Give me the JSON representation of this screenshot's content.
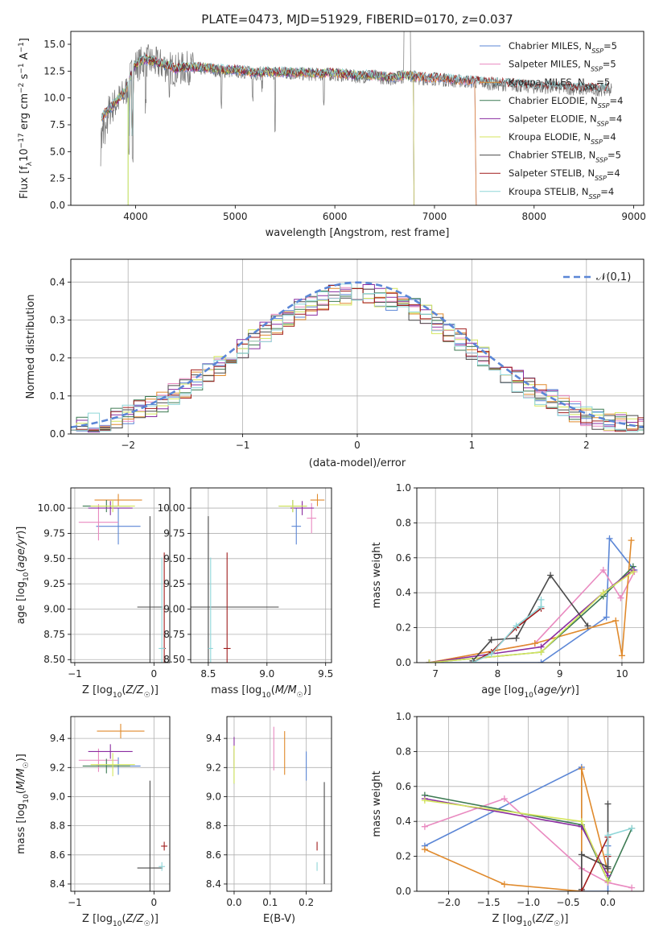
{
  "title": "PLATE=0473, MJD=51929, FIBERID=0170, z=0.037",
  "colors": {
    "Chabrier MILES": "#5b86d6",
    "Salpeter MILES": "#e98ac0",
    "Kroupa MILES": "#e08a2c",
    "Chabrier ELODIE": "#3c7a52",
    "Salpeter ELODIE": "#8a2ca0",
    "Kroupa ELODIE": "#d4e65c",
    "Chabrier STELIB": "#4a4a4a",
    "Salpeter STELIB": "#a01c1c",
    "Kroupa STELIB": "#8fd6d8"
  },
  "chart_data": [
    {
      "id": "spectrum",
      "type": "line",
      "xlabel": "wavelength [Angstrom, rest frame]",
      "ylabel": "Flux [f_λ 10^-17 erg cm^-2 s^-1 A^-1]",
      "xlim": [
        3350,
        9100
      ],
      "ylim": [
        0,
        16.2
      ],
      "xticks": [
        "4000",
        "5000",
        "6000",
        "7000",
        "8000",
        "9000"
      ],
      "yticks": [
        "0.0",
        "2.5",
        "5.0",
        "7.5",
        "10.0",
        "12.5",
        "15.0"
      ],
      "grid": false,
      "legend_position": "top-right",
      "legend": [
        {
          "name": "Chabrier MILES, N_SSP=5",
          "base": "Chabrier MILES, N",
          "sub": "SSP",
          "tail": "=5"
        },
        {
          "name": "Salpeter MILES, N_SSP=5",
          "base": "Salpeter MILES, N",
          "sub": "SSP",
          "tail": "=5"
        },
        {
          "name": "Kroupa MILES, N_SSP=5",
          "base": "Kroupa MILES, N",
          "sub": "SSP",
          "tail": "=5"
        },
        {
          "name": "Chabrier ELODIE, N_SSP=4",
          "base": "Chabrier ELODIE, N",
          "sub": "SSP",
          "tail": "=4"
        },
        {
          "name": "Salpeter ELODIE, N_SSP=4",
          "base": "Salpeter ELODIE, N",
          "sub": "SSP",
          "tail": "=4"
        },
        {
          "name": "Kroupa ELODIE, N_SSP=4",
          "base": "Kroupa ELODIE, N",
          "sub": "SSP",
          "tail": "=4"
        },
        {
          "name": "Chabrier STELIB, N_SSP=5",
          "base": "Chabrier STELIB, N",
          "sub": "SSP",
          "tail": "=5"
        },
        {
          "name": "Salpeter STELIB, N_SSP=4",
          "base": "Salpeter STELIB, N",
          "sub": "SSP",
          "tail": "=4"
        },
        {
          "name": "Kroupa STELIB, N_SSP=4",
          "base": "Kroupa STELIB, N",
          "sub": "SSP",
          "tail": "=4"
        }
      ],
      "data_envelope": {
        "x": [
          3650,
          3700,
          3800,
          3900,
          3950,
          4000,
          4100,
          4200,
          4300,
          4400,
          4500,
          4700,
          4900,
          5000,
          5200,
          5500,
          5800,
          6000,
          6200,
          6400,
          6563,
          6700,
          6900,
          7000,
          7200,
          7400,
          7600,
          7800,
          8000,
          8200,
          8500,
          8800
        ],
        "y": [
          8.0,
          8.5,
          9.5,
          10.5,
          12.0,
          13.0,
          13.5,
          13.2,
          13.0,
          12.6,
          12.8,
          12.7,
          12.5,
          12.5,
          12.3,
          12.3,
          12.2,
          12.2,
          12.0,
          12.0,
          11.8,
          12.0,
          11.8,
          11.8,
          11.6,
          11.5,
          11.3,
          11.2,
          11.0,
          11.0,
          10.8,
          10.8
        ]
      }
    },
    {
      "id": "residuals",
      "type": "line",
      "xlabel": "(data-model)/error",
      "ylabel": "Normed distribution",
      "xlim": [
        -2.5,
        2.5
      ],
      "ylim": [
        0,
        0.46
      ],
      "xticks": [
        "−2",
        "−1",
        "0",
        "1",
        "2"
      ],
      "yticks": [
        "0.0",
        "0.1",
        "0.2",
        "0.3",
        "0.4"
      ],
      "grid": true,
      "legend_position": "top-right",
      "gaussian_label": "𝒩(0,1)",
      "gaussian": {
        "mean": 0,
        "sigma": 1
      }
    },
    {
      "id": "age-vs-Z",
      "type": "scatter",
      "xlabel": "Z [log10(Z/Z☉)]",
      "ylabel": "age  [log10(age/yr)]",
      "xlim": [
        -1.05,
        0.2
      ],
      "ylim": [
        8.47,
        10.2
      ],
      "xticks": [
        "−1",
        "0"
      ],
      "yticks": [
        "8.50",
        "8.75",
        "9.00",
        "9.25",
        "9.50",
        "9.75",
        "10.00"
      ],
      "grid": true,
      "points": [
        {
          "model": "Chabrier MILES",
          "x": -0.45,
          "xerr": 0.28,
          "y": 9.82,
          "yerr": 0.18
        },
        {
          "model": "Salpeter MILES",
          "x": -0.7,
          "xerr": 0.25,
          "y": 9.86,
          "yerr": 0.18
        },
        {
          "model": "Kroupa MILES",
          "x": -0.45,
          "xerr": 0.3,
          "y": 10.08,
          "yerr": 0.06
        },
        {
          "model": "Chabrier ELODIE",
          "x": -0.6,
          "xerr": 0.3,
          "y": 10.02,
          "yerr": 0.06
        },
        {
          "model": "Salpeter ELODIE",
          "x": -0.55,
          "xerr": 0.28,
          "y": 10.0,
          "yerr": 0.07
        },
        {
          "model": "Kroupa ELODIE",
          "x": -0.52,
          "xerr": 0.28,
          "y": 10.02,
          "yerr": 0.06
        },
        {
          "model": "Chabrier STELIB",
          "x": -0.05,
          "xerr": 0.16,
          "y": 9.02,
          "yerr": 0.9
        },
        {
          "model": "Salpeter STELIB",
          "x": 0.13,
          "xerr": 0.02,
          "y": 8.61,
          "yerr": 0.95
        },
        {
          "model": "Kroupa STELIB",
          "x": 0.1,
          "xerr": 0.04,
          "y": 8.61,
          "yerr": 0.9
        }
      ]
    },
    {
      "id": "age-vs-mass",
      "type": "scatter",
      "xlabel": "mass [log10(M/M☉)]",
      "xlim": [
        8.35,
        9.55
      ],
      "ylim": [
        8.47,
        10.2
      ],
      "xticks": [
        "8.5",
        "9.0",
        "9.5"
      ],
      "yticks": [
        "8.50",
        "8.75",
        "9.00",
        "9.25",
        "9.50",
        "9.75",
        "10.00"
      ],
      "grid": true,
      "points": [
        {
          "model": "Chabrier MILES",
          "x": 9.25,
          "xerr": 0.04,
          "y": 9.82,
          "yerr": 0.18
        },
        {
          "model": "Salpeter MILES",
          "x": 9.38,
          "xerr": 0.04,
          "y": 9.9,
          "yerr": 0.15
        },
        {
          "model": "Kroupa MILES",
          "x": 9.43,
          "xerr": 0.06,
          "y": 10.08,
          "yerr": 0.06
        },
        {
          "model": "Chabrier ELODIE",
          "x": 9.22,
          "xerr": 0.12,
          "y": 10.02,
          "yerr": 0.06
        },
        {
          "model": "Salpeter ELODIE",
          "x": 9.3,
          "xerr": 0.1,
          "y": 10.0,
          "yerr": 0.07
        },
        {
          "model": "Kroupa ELODIE",
          "x": 9.22,
          "xerr": 0.12,
          "y": 10.02,
          "yerr": 0.06
        },
        {
          "model": "Chabrier STELIB",
          "x": 8.5,
          "xerr": 0.6,
          "y": 9.02,
          "yerr": 0.9
        },
        {
          "model": "Salpeter STELIB",
          "x": 8.66,
          "xerr": 0.03,
          "y": 8.61,
          "yerr": 0.95
        },
        {
          "model": "Kroupa STELIB",
          "x": 8.52,
          "xerr": 0.02,
          "y": 8.61,
          "yerr": 0.9
        }
      ]
    },
    {
      "id": "weight-vs-age",
      "type": "line",
      "xlabel": "age  [log10(age/yr)]",
      "ylabel": "mass weight",
      "xlim": [
        6.7,
        10.35
      ],
      "ylim": [
        0,
        1.0
      ],
      "xticks": [
        "7",
        "8",
        "9",
        "10"
      ],
      "yticks": [
        "0.0",
        "0.2",
        "0.4",
        "0.6",
        "0.8",
        "1.0"
      ],
      "grid": true,
      "series": [
        {
          "model": "Chabrier MILES",
          "x": [
            6.9,
            8.7,
            9.75,
            9.8,
            10.2
          ],
          "y": [
            0.0,
            0.0,
            0.26,
            0.71,
            0.53
          ]
        },
        {
          "model": "Salpeter MILES",
          "x": [
            6.9,
            8.6,
            9.7,
            9.98,
            10.2
          ],
          "y": [
            0.0,
            0.11,
            0.53,
            0.37,
            0.52
          ]
        },
        {
          "model": "Kroupa MILES",
          "x": [
            6.9,
            8.6,
            9.9,
            10.0,
            10.15
          ],
          "y": [
            0.0,
            0.11,
            0.24,
            0.04,
            0.7
          ]
        },
        {
          "model": "Chabrier ELODIE",
          "x": [
            6.9,
            8.7,
            9.7,
            10.18
          ],
          "y": [
            0.0,
            0.06,
            0.38,
            0.55
          ]
        },
        {
          "model": "Salpeter ELODIE",
          "x": [
            6.9,
            8.7,
            9.7,
            10.18
          ],
          "y": [
            0.0,
            0.09,
            0.4,
            0.53
          ]
        },
        {
          "model": "Kroupa ELODIE",
          "x": [
            6.9,
            8.7,
            9.7,
            10.18
          ],
          "y": [
            0.0,
            0.06,
            0.4,
            0.52
          ]
        },
        {
          "model": "Chabrier STELIB",
          "x": [
            7.6,
            7.9,
            8.3,
            8.85,
            9.45
          ],
          "y": [
            0.01,
            0.13,
            0.14,
            0.5,
            0.21
          ]
        },
        {
          "model": "Salpeter STELIB",
          "x": [
            7.6,
            7.9,
            8.3,
            8.7
          ],
          "y": [
            0.0,
            0.06,
            0.2,
            0.31
          ]
        },
        {
          "model": "Kroupa STELIB",
          "x": [
            7.6,
            7.9,
            8.3,
            8.7,
            8.7
          ],
          "y": [
            0.0,
            0.05,
            0.21,
            0.32,
            0.36
          ]
        }
      ]
    },
    {
      "id": "mass-vs-Z",
      "type": "scatter",
      "xlabel": "Z [log10(Z/Z☉)]",
      "ylabel": "mass [log10(M/M☉)]",
      "xlim": [
        -1.05,
        0.2
      ],
      "ylim": [
        8.35,
        9.55
      ],
      "xticks": [
        "−1",
        "0"
      ],
      "yticks": [
        "8.4",
        "8.6",
        "8.8",
        "9.0",
        "9.2",
        "9.4"
      ],
      "grid": true,
      "points": [
        {
          "model": "Chabrier MILES",
          "x": -0.45,
          "xerr": 0.28,
          "y": 9.21,
          "yerr": 0.06
        },
        {
          "model": "Salpeter MILES",
          "x": -0.7,
          "xerr": 0.25,
          "y": 9.25,
          "yerr": 0.08
        },
        {
          "model": "Kroupa MILES",
          "x": -0.42,
          "xerr": 0.3,
          "y": 9.45,
          "yerr": 0.05
        },
        {
          "model": "Chabrier ELODIE",
          "x": -0.6,
          "xerr": 0.3,
          "y": 9.21,
          "yerr": 0.05
        },
        {
          "model": "Salpeter ELODIE",
          "x": -0.55,
          "xerr": 0.28,
          "y": 9.31,
          "yerr": 0.05
        },
        {
          "model": "Kroupa ELODIE",
          "x": -0.52,
          "xerr": 0.28,
          "y": 9.22,
          "yerr": 0.08
        },
        {
          "model": "Chabrier STELIB",
          "x": -0.05,
          "xerr": 0.16,
          "y": 8.51,
          "yerr": 0.6
        },
        {
          "model": "Salpeter STELIB",
          "x": 0.13,
          "xerr": 0.04,
          "y": 8.66,
          "yerr": 0.03
        },
        {
          "model": "Kroupa STELIB",
          "x": 0.1,
          "xerr": 0.04,
          "y": 8.52,
          "yerr": 0.03
        }
      ]
    },
    {
      "id": "mass-vs-EBV",
      "type": "scatter",
      "xlabel": "E(B-V)",
      "xlim": [
        -0.02,
        0.27
      ],
      "ylim": [
        8.35,
        9.55
      ],
      "xticks": [
        "0.0",
        "0.1",
        "0.2"
      ],
      "yticks": [
        "8.4",
        "8.6",
        "8.8",
        "9.0",
        "9.2",
        "9.4"
      ],
      "grid": true,
      "points": [
        {
          "model": "Chabrier MILES",
          "x": 0.2,
          "y": 9.21,
          "yerr": 0.1
        },
        {
          "model": "Salpeter MILES",
          "x": 0.11,
          "y": 9.33,
          "yerr": 0.15
        },
        {
          "model": "Kroupa MILES",
          "x": 0.14,
          "y": 9.3,
          "yerr": 0.15
        },
        {
          "model": "Chabrier ELODIE",
          "x": 0.0,
          "y": 9.21,
          "yerr": 0.12
        },
        {
          "model": "Salpeter ELODIE",
          "x": 0.0,
          "y": 9.31,
          "yerr": 0.1
        },
        {
          "model": "Kroupa ELODIE",
          "x": 0.0,
          "y": 9.22,
          "yerr": 0.13
        },
        {
          "model": "Chabrier STELIB",
          "x": 0.25,
          "y": 8.75,
          "yerr": 0.35
        },
        {
          "model": "Salpeter STELIB",
          "x": 0.23,
          "y": 8.66,
          "yerr": 0.03
        },
        {
          "model": "Kroupa STELIB",
          "x": 0.23,
          "y": 8.52,
          "yerr": 0.03
        }
      ]
    },
    {
      "id": "weight-vs-Z",
      "type": "line",
      "xlabel": "Z [log10(Z/Z☉)]",
      "ylabel": "mass weight",
      "xlim": [
        -2.4,
        0.45
      ],
      "ylim": [
        0,
        1.0
      ],
      "xticks": [
        "−2.0",
        "−1.5",
        "−1.0",
        "−0.5",
        "0.0"
      ],
      "yticks": [
        "0.0",
        "0.2",
        "0.4",
        "0.6",
        "0.8",
        "1.0"
      ],
      "grid": true,
      "series": [
        {
          "model": "Chabrier MILES",
          "x": [
            -2.3,
            -0.33,
            -0.33,
            0.0,
            0.0
          ],
          "y": [
            0.26,
            0.71,
            0.0,
            0.0,
            0.26
          ]
        },
        {
          "model": "Salpeter MILES",
          "x": [
            -2.3,
            -1.3,
            -0.33,
            0.0,
            0.3
          ],
          "y": [
            0.37,
            0.53,
            0.13,
            0.05,
            0.02
          ]
        },
        {
          "model": "Kroupa MILES",
          "x": [
            -2.3,
            -1.3,
            -0.33,
            -0.33,
            0.0
          ],
          "y": [
            0.24,
            0.04,
            0.0,
            0.7,
            0.11
          ]
        },
        {
          "model": "Chabrier ELODIE",
          "x": [
            -2.3,
            -0.33,
            0.0,
            0.3
          ],
          "y": [
            0.55,
            0.38,
            0.06,
            0.36
          ]
        },
        {
          "model": "Salpeter ELODIE",
          "x": [
            -2.3,
            -0.33,
            0.0
          ],
          "y": [
            0.53,
            0.37,
            0.09
          ]
        },
        {
          "model": "Kroupa ELODIE",
          "x": [
            -2.3,
            -0.33,
            0.0
          ],
          "y": [
            0.52,
            0.4,
            0.06
          ]
        },
        {
          "model": "Chabrier STELIB",
          "x": [
            -0.33,
            -0.33,
            0.0,
            0.0,
            0.0
          ],
          "y": [
            0.01,
            0.21,
            0.14,
            0.5,
            0.13
          ]
        },
        {
          "model": "Salpeter STELIB",
          "x": [
            -0.33,
            0.0,
            0.0
          ],
          "y": [
            0.0,
            0.31,
            0.2
          ]
        },
        {
          "model": "Kroupa STELIB",
          "x": [
            0.0,
            0.0,
            0.3
          ],
          "y": [
            0.21,
            0.32,
            0.36
          ]
        }
      ]
    }
  ]
}
